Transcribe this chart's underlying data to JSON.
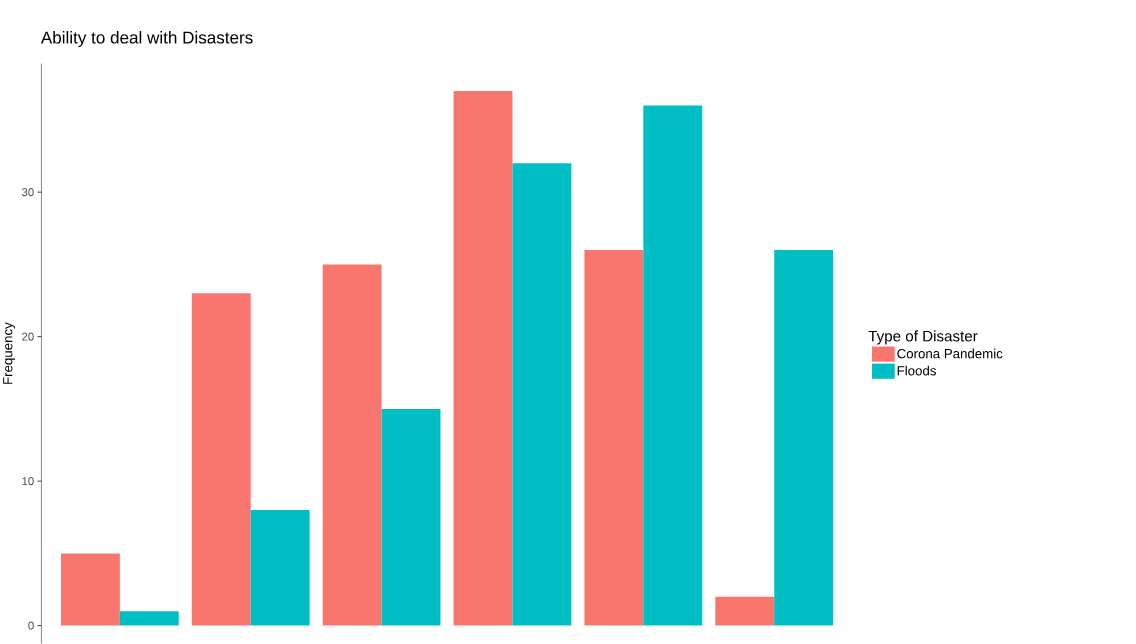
{
  "chart_data": {
    "type": "bar",
    "title": "Ability to deal with Disasters",
    "ylabel": "Frequency",
    "legend_title": "Type of Disaster",
    "categories": [
      null,
      null,
      null,
      null,
      null,
      null
    ],
    "series": [
      {
        "name": "Corona Pandemic",
        "color": "#f8766d",
        "values": [
          5,
          23,
          25,
          37,
          26,
          2
        ]
      },
      {
        "name": "Floods",
        "color": "#00bfc4",
        "values": [
          1,
          8,
          15,
          32,
          36,
          26
        ]
      }
    ],
    "ylim": [
      -1.25,
      38.9
    ],
    "yticks": [
      0,
      10,
      20,
      30
    ],
    "legend": "right",
    "grid": false
  }
}
